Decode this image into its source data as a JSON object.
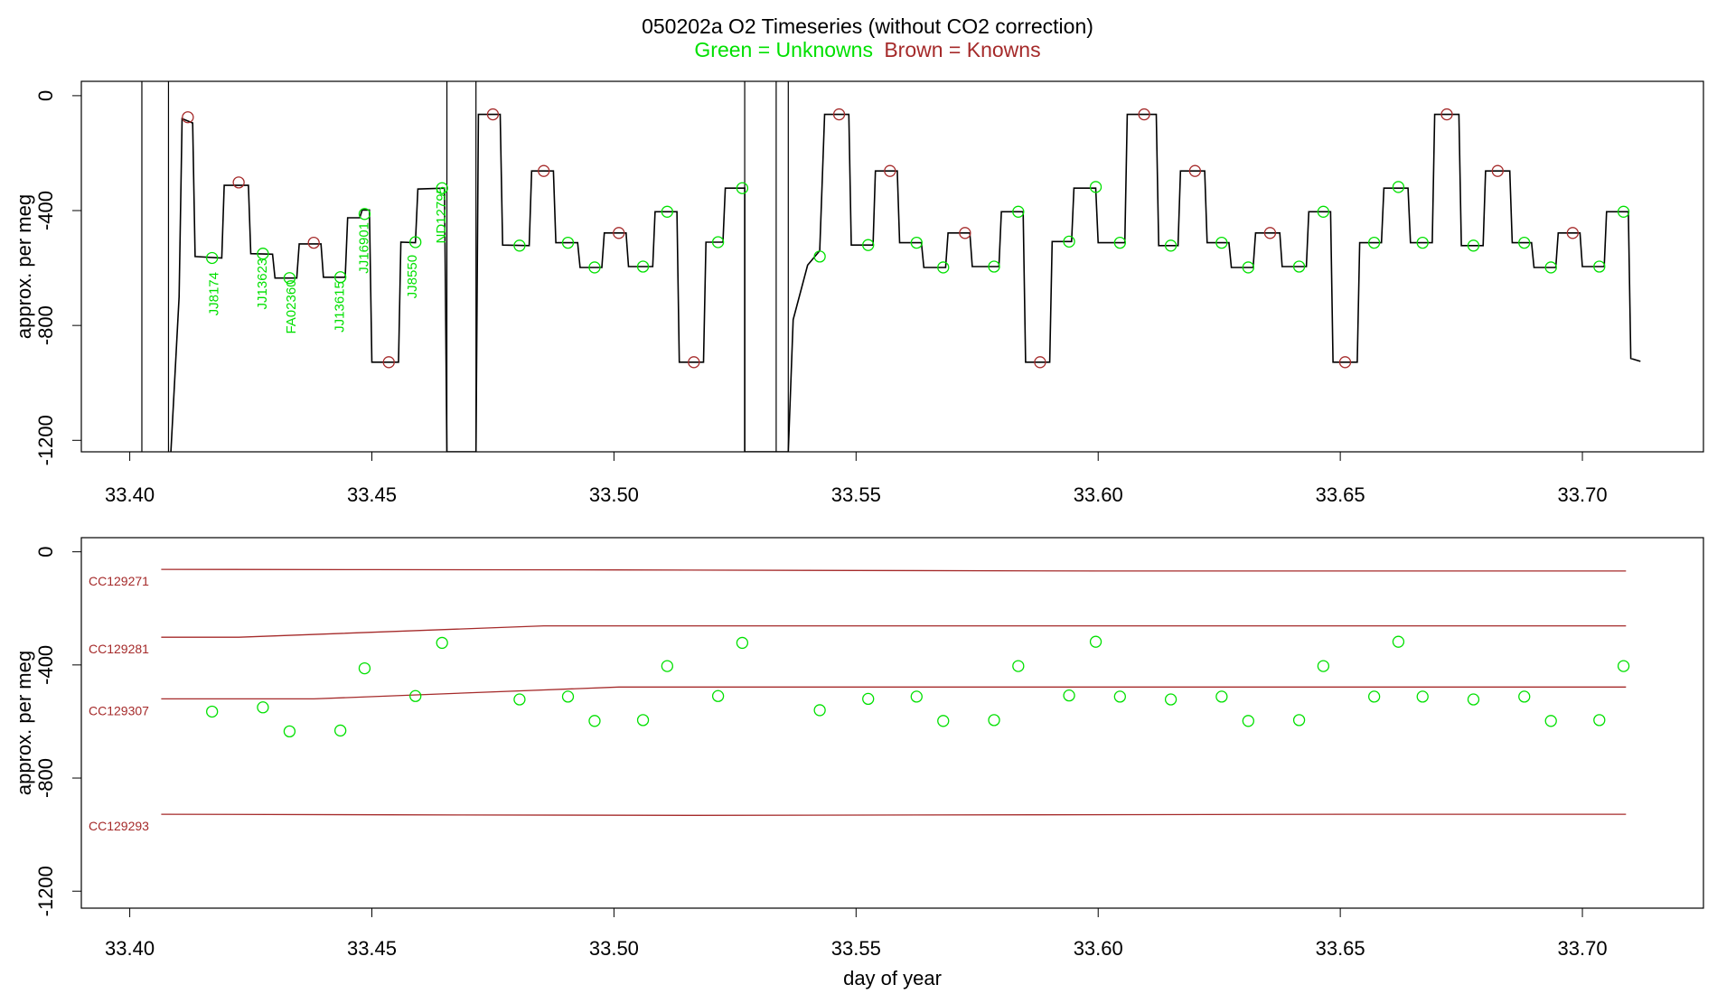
{
  "header": {
    "title": "050202a   O2 Timeseries (without CO2 correction)",
    "legend_unknowns": "Green = Unknowns",
    "legend_knowns": "Brown = Knowns"
  },
  "colors": {
    "unknowns": "#00e000",
    "knowns": "#a52a2a",
    "trace": "#000000",
    "frame": "#000000"
  },
  "chart_data": [
    {
      "type": "line",
      "panel": "top",
      "ylabel": "approx. per meg",
      "xlabel": "",
      "xlim": [
        33.39,
        33.725
      ],
      "ylim": [
        -1240,
        50
      ],
      "xticks": [
        "33.40",
        "33.45",
        "33.50",
        "33.55",
        "33.60",
        "33.65",
        "33.70"
      ],
      "yticks": [
        "0",
        "-400",
        "-800",
        "-1200"
      ],
      "gap_marks_x": [
        33.4025,
        33.408,
        33.4655,
        33.4715,
        33.527,
        33.5335,
        33.536
      ],
      "trace_breakpoints": [
        [
          33.4085,
          -1240
        ],
        [
          33.4102,
          -700
        ],
        [
          33.4108,
          -80
        ],
        [
          33.413,
          -95
        ],
        [
          33.4135,
          -560
        ],
        [
          33.419,
          -565
        ],
        [
          33.4195,
          -312
        ],
        [
          33.4245,
          -312
        ],
        [
          33.425,
          -550
        ],
        [
          33.4295,
          -552
        ],
        [
          33.43,
          -635
        ],
        [
          33.4345,
          -635
        ],
        [
          33.435,
          -516
        ],
        [
          33.4395,
          -516
        ],
        [
          33.44,
          -632
        ],
        [
          33.4445,
          -632
        ],
        [
          33.445,
          -425
        ],
        [
          33.4475,
          -425
        ],
        [
          33.448,
          -398
        ],
        [
          33.4495,
          -398
        ],
        [
          33.45,
          -928
        ],
        [
          33.4555,
          -928
        ],
        [
          33.456,
          -510
        ],
        [
          33.459,
          -512
        ],
        [
          33.4595,
          -325
        ],
        [
          33.465,
          -322
        ],
        [
          33.4655,
          -1240
        ],
        [
          33.4715,
          -1240
        ],
        [
          33.472,
          -65
        ],
        [
          33.4765,
          -65
        ],
        [
          33.477,
          -520
        ],
        [
          33.4825,
          -522
        ],
        [
          33.483,
          -262
        ],
        [
          33.4875,
          -262
        ],
        [
          33.488,
          -512
        ],
        [
          33.4925,
          -512
        ],
        [
          33.493,
          -598
        ],
        [
          33.4975,
          -598
        ],
        [
          33.498,
          -478
        ],
        [
          33.5025,
          -478
        ],
        [
          33.503,
          -595
        ],
        [
          33.508,
          -595
        ],
        [
          33.5085,
          -404
        ],
        [
          33.513,
          -404
        ],
        [
          33.5135,
          -928
        ],
        [
          33.5185,
          -928
        ],
        [
          33.519,
          -510
        ],
        [
          33.5225,
          -510
        ],
        [
          33.523,
          -322
        ],
        [
          33.527,
          -322
        ],
        [
          33.527,
          -1240
        ],
        [
          33.536,
          -1240
        ],
        [
          33.537,
          -780
        ],
        [
          33.54,
          -590
        ],
        [
          33.5425,
          -540
        ],
        [
          33.5435,
          -65
        ],
        [
          33.5485,
          -65
        ],
        [
          33.549,
          -520
        ],
        [
          33.5535,
          -520
        ],
        [
          33.554,
          -262
        ],
        [
          33.5585,
          -262
        ],
        [
          33.559,
          -512
        ],
        [
          33.5635,
          -512
        ],
        [
          33.564,
          -598
        ],
        [
          33.5685,
          -598
        ],
        [
          33.569,
          -478
        ],
        [
          33.5735,
          -478
        ],
        [
          33.574,
          -595
        ],
        [
          33.5795,
          -595
        ],
        [
          33.58,
          -404
        ],
        [
          33.5845,
          -404
        ],
        [
          33.585,
          -928
        ],
        [
          33.59,
          -928
        ],
        [
          33.5905,
          -508
        ],
        [
          33.5945,
          -508
        ],
        [
          33.595,
          -322
        ],
        [
          33.5995,
          -322
        ],
        [
          33.6,
          -512
        ],
        [
          33.6055,
          -512
        ],
        [
          33.606,
          -65
        ],
        [
          33.612,
          -65
        ],
        [
          33.6125,
          -522
        ],
        [
          33.6165,
          -522
        ],
        [
          33.617,
          -262
        ],
        [
          33.622,
          -262
        ],
        [
          33.6225,
          -512
        ],
        [
          33.627,
          -512
        ],
        [
          33.6275,
          -598
        ],
        [
          33.632,
          -598
        ],
        [
          33.6325,
          -478
        ],
        [
          33.6375,
          -478
        ],
        [
          33.638,
          -595
        ],
        [
          33.643,
          -595
        ],
        [
          33.6435,
          -404
        ],
        [
          33.648,
          -404
        ],
        [
          33.6485,
          -928
        ],
        [
          33.6535,
          -928
        ],
        [
          33.654,
          -512
        ],
        [
          33.6585,
          -512
        ],
        [
          33.659,
          -322
        ],
        [
          33.664,
          -322
        ],
        [
          33.6645,
          -512
        ],
        [
          33.669,
          -512
        ],
        [
          33.6695,
          -65
        ],
        [
          33.6745,
          -65
        ],
        [
          33.675,
          -522
        ],
        [
          33.6795,
          -522
        ],
        [
          33.68,
          -262
        ],
        [
          33.685,
          -262
        ],
        [
          33.6855,
          -512
        ],
        [
          33.6895,
          -512
        ],
        [
          33.69,
          -598
        ],
        [
          33.6945,
          -598
        ],
        [
          33.695,
          -478
        ],
        [
          33.6995,
          -478
        ],
        [
          33.7,
          -595
        ],
        [
          33.7045,
          -595
        ],
        [
          33.705,
          -404
        ],
        [
          33.7095,
          -404
        ],
        [
          33.71,
          -915
        ],
        [
          33.712,
          -925
        ]
      ],
      "known_points": [
        {
          "x": 33.412,
          "y": -75
        },
        {
          "x": 33.4225,
          "y": -302
        },
        {
          "x": 33.438,
          "y": -512
        },
        {
          "x": 33.4535,
          "y": -928
        },
        {
          "x": 33.475,
          "y": -65
        },
        {
          "x": 33.4855,
          "y": -262
        },
        {
          "x": 33.501,
          "y": -478
        },
        {
          "x": 33.5165,
          "y": -928
        },
        {
          "x": 33.5465,
          "y": -65
        },
        {
          "x": 33.557,
          "y": -262
        },
        {
          "x": 33.5725,
          "y": -478
        },
        {
          "x": 33.588,
          "y": -928
        },
        {
          "x": 33.6095,
          "y": -65
        },
        {
          "x": 33.62,
          "y": -262
        },
        {
          "x": 33.6355,
          "y": -478
        },
        {
          "x": 33.651,
          "y": -928
        },
        {
          "x": 33.672,
          "y": -65
        },
        {
          "x": 33.6825,
          "y": -262
        },
        {
          "x": 33.698,
          "y": -478
        }
      ],
      "unknown_points": [
        {
          "x": 33.417,
          "y": -565
        },
        {
          "x": 33.4275,
          "y": -550
        },
        {
          "x": 33.433,
          "y": -635
        },
        {
          "x": 33.4435,
          "y": -632
        },
        {
          "x": 33.4485,
          "y": -412
        },
        {
          "x": 33.459,
          "y": -510
        },
        {
          "x": 33.4645,
          "y": -322
        },
        {
          "x": 33.4805,
          "y": -522
        },
        {
          "x": 33.4905,
          "y": -512
        },
        {
          "x": 33.496,
          "y": -598
        },
        {
          "x": 33.506,
          "y": -595
        },
        {
          "x": 33.511,
          "y": -404
        },
        {
          "x": 33.5215,
          "y": -510
        },
        {
          "x": 33.5265,
          "y": -322
        },
        {
          "x": 33.5425,
          "y": -560
        },
        {
          "x": 33.5525,
          "y": -520
        },
        {
          "x": 33.5625,
          "y": -512
        },
        {
          "x": 33.568,
          "y": -598
        },
        {
          "x": 33.5785,
          "y": -595
        },
        {
          "x": 33.5835,
          "y": -404
        },
        {
          "x": 33.594,
          "y": -508
        },
        {
          "x": 33.5995,
          "y": -318
        },
        {
          "x": 33.6045,
          "y": -512
        },
        {
          "x": 33.615,
          "y": -522
        },
        {
          "x": 33.6255,
          "y": -512
        },
        {
          "x": 33.631,
          "y": -598
        },
        {
          "x": 33.6415,
          "y": -595
        },
        {
          "x": 33.6465,
          "y": -404
        },
        {
          "x": 33.657,
          "y": -512
        },
        {
          "x": 33.662,
          "y": -318
        },
        {
          "x": 33.667,
          "y": -512
        },
        {
          "x": 33.6775,
          "y": -522
        },
        {
          "x": 33.688,
          "y": -512
        },
        {
          "x": 33.6935,
          "y": -598
        },
        {
          "x": 33.7035,
          "y": -595
        },
        {
          "x": 33.7085,
          "y": -404
        }
      ],
      "sample_labels": [
        {
          "text": "JJ8174",
          "x": 33.4175,
          "y": -690
        },
        {
          "text": "JJ13623",
          "x": 33.4275,
          "y": -655
        },
        {
          "text": "FA02360",
          "x": 33.4335,
          "y": -735
        },
        {
          "text": "JJ13615",
          "x": 33.4435,
          "y": -735
        },
        {
          "text": "JJ16901",
          "x": 33.4485,
          "y": -530
        },
        {
          "text": "JJ8550",
          "x": 33.4585,
          "y": -630
        },
        {
          "text": "ND12795",
          "x": 33.4645,
          "y": -415
        }
      ]
    },
    {
      "type": "scatter",
      "panel": "bottom",
      "ylabel": "approx. per meg",
      "xlabel": "day of year",
      "xlim": [
        33.39,
        33.725
      ],
      "ylim": [
        -1260,
        50
      ],
      "xticks": [
        "33.40",
        "33.45",
        "33.50",
        "33.55",
        "33.60",
        "33.65",
        "33.70"
      ],
      "yticks": [
        "0",
        "-400",
        "-800",
        "-1200"
      ],
      "reference_series": [
        {
          "name": "CC129271",
          "x": [
            33.4065,
            33.45,
            33.5,
            33.55,
            33.6,
            33.65,
            33.709
          ],
          "y": [
            -62,
            -63,
            -64,
            -66,
            -68,
            -68,
            -68
          ]
        },
        {
          "name": "CC129281",
          "x": [
            33.4065,
            33.4225,
            33.4855,
            33.557,
            33.62,
            33.6825,
            33.709
          ],
          "y": [
            -302,
            -302,
            -262,
            -262,
            -262,
            -262,
            -262
          ]
        },
        {
          "name": "CC129307",
          "x": [
            33.4065,
            33.438,
            33.501,
            33.5725,
            33.6355,
            33.698,
            33.709
          ],
          "y": [
            -520,
            -520,
            -478,
            -478,
            -478,
            -478,
            -478
          ]
        },
        {
          "name": "CC129293",
          "x": [
            33.4065,
            33.4535,
            33.5165,
            33.588,
            33.651,
            33.709
          ],
          "y": [
            -928,
            -930,
            -932,
            -930,
            -928,
            -928
          ]
        }
      ],
      "unknown_points_ref": "same as top panel unknown_points"
    }
  ]
}
